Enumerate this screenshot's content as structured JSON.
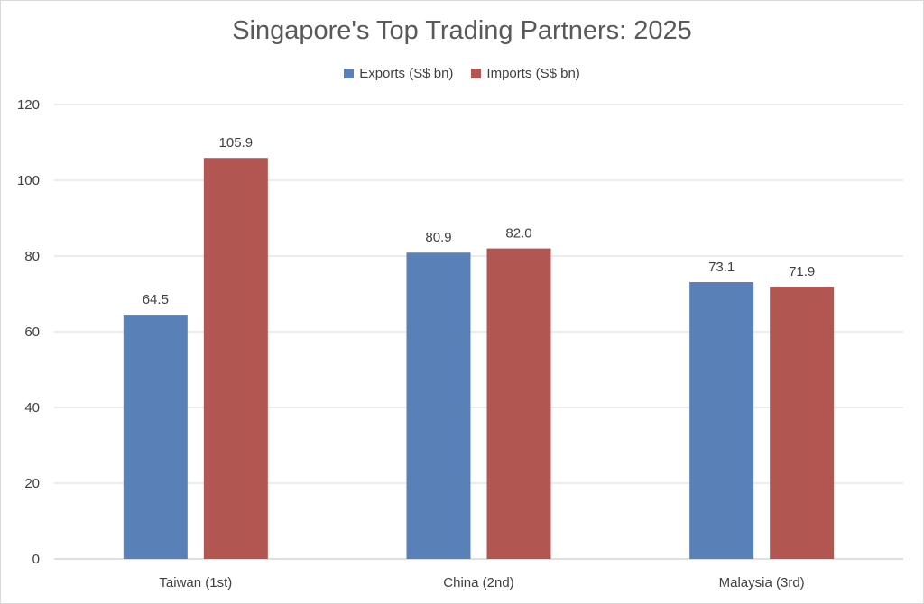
{
  "chart_data": {
    "type": "bar",
    "title": "Singapore's Top Trading Partners: 2025",
    "categories": [
      "Taiwan (1st)",
      "China (2nd)",
      "Malaysia (3rd)"
    ],
    "series": [
      {
        "name": "Exports (S$ bn)",
        "color": "#5a80b8",
        "values": [
          64.5,
          80.9,
          73.1
        ],
        "labels": [
          "64.5",
          "80.9",
          "73.1"
        ]
      },
      {
        "name": "Imports (S$ bn)",
        "color": "#b15650",
        "values": [
          105.9,
          82.0,
          71.9
        ],
        "labels": [
          "105.9",
          "82.0",
          "71.9"
        ]
      }
    ],
    "ylim": [
      0,
      120
    ],
    "yticks": [
      "0",
      "20",
      "40",
      "60",
      "80",
      "100",
      "120"
    ],
    "grid": true,
    "legend_position": "top"
  }
}
